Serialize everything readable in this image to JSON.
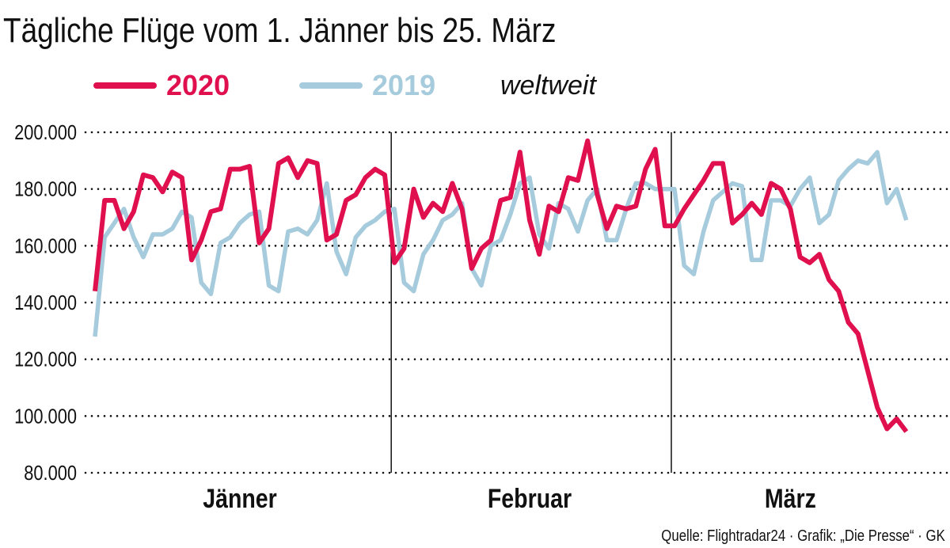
{
  "title": "Tägliche Flüge vom 1. Jänner bis 25. März",
  "legend_note": "weltweit",
  "source": "Quelle: Flightradar24 · Grafik: „Die Presse“ · GK",
  "chart_data": {
    "type": "line",
    "title": "Tägliche Flüge vom 1. Jänner bis 25. März",
    "xlabel": "",
    "ylabel": "",
    "ylim": [
      80000,
      200000
    ],
    "yticks": [
      80000,
      100000,
      120000,
      140000,
      160000,
      180000,
      200000
    ],
    "ytick_labels": [
      "80.000",
      "100.000",
      "120.000",
      "140.000",
      "160.000",
      "180.000",
      "200.000"
    ],
    "months": [
      {
        "label": "Jänner",
        "days": 31
      },
      {
        "label": "Februar",
        "days": 29
      },
      {
        "label": "März",
        "days": 25
      }
    ],
    "grid": "horizontal dotted",
    "legend_placement": "top-left",
    "series": [
      {
        "name": "2020",
        "color": "#e0104f",
        "values": [
          144000,
          176000,
          176000,
          166000,
          172000,
          185000,
          184000,
          179000,
          186000,
          184000,
          155000,
          162000,
          172000,
          173000,
          187000,
          187000,
          188000,
          161000,
          166000,
          189000,
          191000,
          184000,
          190000,
          189000,
          162000,
          164000,
          176000,
          178000,
          184000,
          187000,
          185000,
          154000,
          159000,
          180000,
          170000,
          175000,
          172000,
          182000,
          173000,
          152000,
          159000,
          162000,
          176000,
          177000,
          193000,
          169000,
          157000,
          174000,
          172000,
          184000,
          183000,
          197000,
          178000,
          166000,
          174000,
          173000,
          174000,
          187000,
          194000,
          167000,
          167000,
          173000,
          178000,
          183000,
          189000,
          189000,
          168000,
          171000,
          175000,
          171000,
          182000,
          180000,
          173000,
          156000,
          154000,
          157000,
          148000,
          144000,
          133000,
          129000,
          116000,
          103000,
          95500,
          99000,
          94500
        ]
      },
      {
        "name": "2019",
        "color": "#a6cbdc",
        "values": [
          128000,
          163000,
          168000,
          173000,
          163000,
          156000,
          164000,
          164000,
          166000,
          172000,
          170000,
          147000,
          143000,
          161000,
          163000,
          168000,
          171000,
          172000,
          146000,
          144000,
          165000,
          166000,
          164000,
          169000,
          182000,
          158000,
          150000,
          163000,
          167000,
          169000,
          172000,
          173000,
          147000,
          144000,
          157000,
          162000,
          169000,
          171000,
          175000,
          152000,
          146000,
          160000,
          162000,
          171000,
          182000,
          184000,
          164000,
          159000,
          175000,
          173000,
          165000,
          176000,
          180000,
          162000,
          162000,
          173000,
          182000,
          182000,
          180000,
          180000,
          180000,
          153000,
          150000,
          165000,
          176000,
          179000,
          182000,
          181000,
          155000,
          155000,
          176000,
          176000,
          174000,
          180000,
          184000,
          168000,
          171000,
          183000,
          187000,
          190000,
          189000,
          193000,
          175000,
          180000,
          169000
        ]
      }
    ]
  }
}
